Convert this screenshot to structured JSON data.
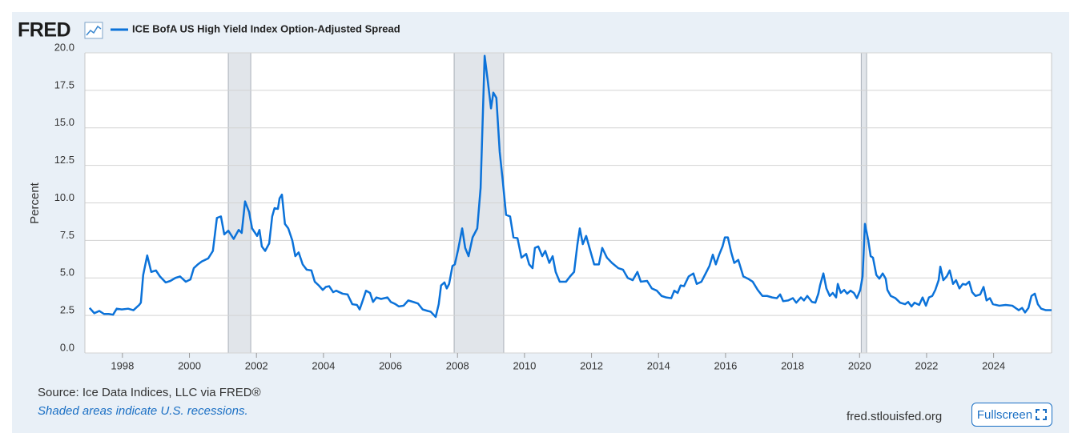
{
  "logo": "FRED",
  "chart_data": {
    "type": "line",
    "ylabel": "Percent",
    "series": [
      {
        "name": "ICE BofA US High Yield Index Option-Adjusted Spread",
        "color": "#0b72d9",
        "values": [
          3.1,
          3.0,
          2.65,
          2.8,
          2.6,
          2.6,
          2.55,
          2.95,
          2.9,
          2.95,
          2.85,
          3.2,
          3.35,
          5.2,
          6.5,
          5.4,
          5.5,
          5.1,
          4.7,
          4.8,
          5.0,
          5.1,
          4.75,
          4.9,
          5.65,
          5.9,
          6.1,
          6.3,
          6.8,
          9.0,
          9.1,
          7.9,
          8.15,
          7.6,
          8.2,
          8.0,
          10.1,
          9.4,
          8.3,
          7.8,
          8.2,
          7.1,
          6.8,
          7.3,
          9.1,
          9.65,
          9.6,
          10.3,
          10.55,
          8.6,
          8.3,
          7.5,
          6.45,
          6.7,
          5.9,
          5.55,
          5.5,
          4.75,
          4.5,
          4.2,
          4.4,
          4.45,
          4.05,
          4.15,
          3.95,
          3.9,
          3.25,
          3.2,
          2.9,
          3.35,
          4.15,
          4.0,
          3.4,
          3.7,
          3.6,
          3.7,
          3.4,
          3.25,
          3.1,
          3.15,
          3.5,
          3.4,
          3.3,
          2.9,
          2.8,
          2.75,
          2.4,
          3.25,
          4.5,
          4.7,
          4.3,
          4.6,
          5.8,
          5.9,
          6.9,
          8.3,
          7.0,
          6.45,
          7.7,
          8.3,
          11.0,
          19.8,
          18.2,
          16.3,
          17.35,
          17.0,
          13.4,
          11.5,
          9.2,
          9.1,
          7.7,
          7.65,
          6.35,
          6.6,
          5.9,
          5.65,
          7.0,
          7.1,
          6.45,
          6.8,
          6.0,
          6.45,
          5.4,
          4.75,
          4.75,
          5.1,
          5.4,
          7.25,
          8.3,
          7.25,
          7.8,
          7.0,
          5.9,
          5.9,
          7.0,
          6.35,
          6.0,
          5.65,
          5.55,
          5.0,
          4.85,
          5.4,
          4.75,
          4.8,
          4.3,
          4.15,
          3.8,
          3.7,
          3.65,
          4.15,
          4.0,
          4.5,
          4.45,
          5.1,
          5.3,
          4.6,
          4.75,
          5.4,
          5.8,
          6.55,
          5.9,
          6.55,
          7.1,
          7.7,
          7.7,
          6.7,
          6.0,
          6.2,
          5.1,
          4.95,
          4.75,
          4.2,
          3.8,
          3.8,
          3.7,
          3.65,
          3.9,
          3.45,
          3.5,
          3.65,
          3.35,
          3.7,
          3.5,
          3.8,
          3.4,
          3.35,
          3.95,
          4.5,
          5.3,
          4.3,
          3.8,
          4.0,
          3.7,
          4.6,
          4.0,
          4.2,
          3.95,
          4.15,
          4.0,
          3.65,
          4.2,
          5.1,
          8.6,
          7.5,
          6.45,
          6.35,
          5.2,
          4.95,
          5.3,
          4.95,
          4.2,
          3.8,
          3.65,
          3.35,
          3.25,
          3.4,
          3.1,
          3.35,
          3.2,
          3.7,
          3.15,
          3.7,
          3.8,
          4.2,
          4.85,
          5.75,
          4.85,
          5.1,
          5.5,
          4.6,
          4.85,
          4.3,
          4.6,
          4.55,
          4.75,
          4.05,
          3.8,
          3.9,
          4.4,
          3.5,
          3.65,
          3.25,
          3.15,
          3.2,
          3.15,
          2.85,
          3.0,
          2.7,
          3.0,
          3.8,
          3.95,
          3.25,
          2.95,
          2.85,
          2.85
        ]
      }
    ],
    "x": [
      1996.88,
      1997.02,
      1997.16,
      1997.31,
      1997.45,
      1997.59,
      1997.72,
      1997.83,
      1997.98,
      1998.17,
      1998.33,
      1998.5,
      1998.55,
      1998.62,
      1998.74,
      1998.86,
      1999.0,
      1999.12,
      1999.29,
      1999.43,
      1999.58,
      1999.72,
      1999.89,
      2000.03,
      2000.13,
      2000.25,
      2000.37,
      2000.56,
      2000.7,
      2000.82,
      2000.94,
      2001.04,
      2001.16,
      2001.32,
      2001.47,
      2001.56,
      2001.66,
      2001.78,
      2001.87,
      2002.02,
      2002.09,
      2002.16,
      2002.26,
      2002.38,
      2002.47,
      2002.54,
      2002.64,
      2002.69,
      2002.76,
      2002.85,
      2002.95,
      2003.07,
      2003.16,
      2003.26,
      2003.38,
      2003.5,
      2003.64,
      2003.74,
      2003.86,
      2003.98,
      2004.07,
      2004.17,
      2004.29,
      2004.38,
      2004.57,
      2004.72,
      2004.86,
      2005.0,
      2005.08,
      2005.15,
      2005.27,
      2005.39,
      2005.48,
      2005.58,
      2005.72,
      2005.91,
      2006.01,
      2006.15,
      2006.25,
      2006.39,
      2006.53,
      2006.68,
      2006.82,
      2006.96,
      2007.11,
      2007.2,
      2007.35,
      2007.44,
      2007.51,
      2007.61,
      2007.68,
      2007.75,
      2007.85,
      2007.92,
      2008.02,
      2008.14,
      2008.23,
      2008.33,
      2008.45,
      2008.59,
      2008.69,
      2008.81,
      2008.9,
      2009.0,
      2009.07,
      2009.16,
      2009.26,
      2009.35,
      2009.45,
      2009.57,
      2009.67,
      2009.79,
      2009.91,
      2010.05,
      2010.14,
      2010.24,
      2010.31,
      2010.41,
      2010.53,
      2010.62,
      2010.74,
      2010.84,
      2010.93,
      2011.05,
      2011.24,
      2011.36,
      2011.48,
      2011.58,
      2011.65,
      2011.74,
      2011.84,
      2011.94,
      2012.08,
      2012.22,
      2012.32,
      2012.46,
      2012.61,
      2012.8,
      2012.94,
      2013.08,
      2013.23,
      2013.37,
      2013.47,
      2013.66,
      2013.8,
      2013.95,
      2014.09,
      2014.23,
      2014.38,
      2014.47,
      2014.57,
      2014.66,
      2014.76,
      2014.9,
      2015.04,
      2015.14,
      2015.28,
      2015.43,
      2015.52,
      2015.62,
      2015.71,
      2015.81,
      2015.91,
      2015.98,
      2016.07,
      2016.17,
      2016.26,
      2016.38,
      2016.53,
      2016.67,
      2016.81,
      2016.96,
      2017.1,
      2017.24,
      2017.39,
      2017.53,
      2017.63,
      2017.72,
      2017.87,
      2018.01,
      2018.11,
      2018.25,
      2018.34,
      2018.44,
      2018.58,
      2018.68,
      2018.77,
      2018.82,
      2018.92,
      2019.01,
      2019.11,
      2019.2,
      2019.3,
      2019.35,
      2019.44,
      2019.54,
      2019.63,
      2019.73,
      2019.83,
      2019.92,
      2020.02,
      2020.09,
      2020.16,
      2020.26,
      2020.33,
      2020.4,
      2020.5,
      2020.59,
      2020.69,
      2020.78,
      2020.83,
      2020.93,
      2021.07,
      2021.21,
      2021.36,
      2021.45,
      2021.55,
      2021.64,
      2021.78,
      2021.88,
      2021.98,
      2022.07,
      2022.17,
      2022.26,
      2022.36,
      2022.41,
      2022.5,
      2022.6,
      2022.69,
      2022.79,
      2022.88,
      2022.98,
      2023.08,
      2023.17,
      2023.27,
      2023.36,
      2023.46,
      2023.6,
      2023.7,
      2023.79,
      2023.89,
      2023.98,
      2024.17,
      2024.36,
      2024.56,
      2024.75,
      2024.85,
      2024.94,
      2025.04,
      2025.13,
      2025.23,
      2025.32,
      2025.42,
      2025.56,
      2025.73
    ],
    "xlim": [
      1996.88,
      2025.73
    ],
    "xticks": [
      1998,
      2000,
      2002,
      2004,
      2006,
      2008,
      2010,
      2012,
      2014,
      2016,
      2018,
      2020,
      2022,
      2024
    ],
    "ylim": [
      0,
      20
    ],
    "yticks": [
      {
        "value": 0,
        "label": "0.0"
      },
      {
        "value": 2.5,
        "label": "2.5"
      },
      {
        "value": 5,
        "label": "5.0"
      },
      {
        "value": 7.5,
        "label": "7.5"
      },
      {
        "value": 10,
        "label": "10.0"
      },
      {
        "value": 12.5,
        "label": "12.5"
      },
      {
        "value": 15,
        "label": "15.0"
      },
      {
        "value": 17.5,
        "label": "17.5"
      },
      {
        "value": 20,
        "label": "20.0"
      }
    ],
    "grid": true,
    "recessions": [
      [
        2001.16,
        2001.83
      ],
      [
        2007.9,
        2009.38
      ],
      [
        2020.05,
        2020.21
      ]
    ],
    "recession_color": "#e1e5ea"
  },
  "source": "Source: Ice Data Indices, LLC via FRED®",
  "note": "Shaded areas indicate U.S. recessions.",
  "site": "fred.stlouisfed.org",
  "button": "Fullscreen"
}
